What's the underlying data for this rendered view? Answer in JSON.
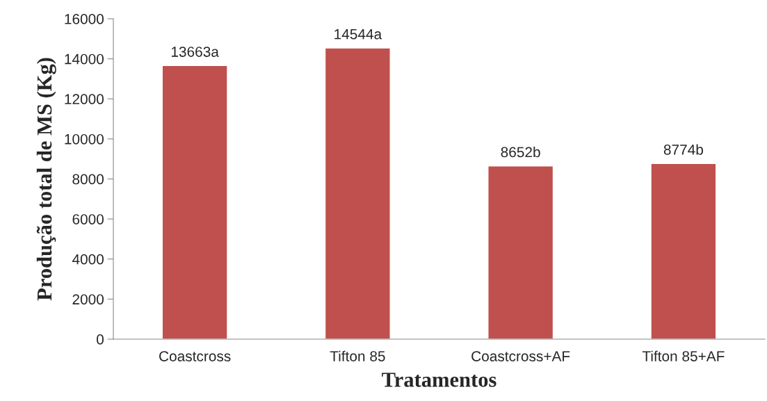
{
  "chart_data": {
    "type": "bar",
    "xlabel": "Tratamentos",
    "ylabel": "Produção total de MS (Kg)",
    "categories": [
      "Coastcross",
      "Tifton 85",
      "Coastcross+AF",
      "Tifton 85+AF"
    ],
    "values": [
      13663,
      14544,
      8652,
      8774
    ],
    "color": "#c0504d",
    "value_labels": [
      "13663a",
      "14544a",
      "8652b",
      "8774b"
    ],
    "ylim": [
      0,
      16000
    ],
    "yticks": [
      0,
      2000,
      4000,
      6000,
      8000,
      10000,
      12000,
      14000,
      16000
    ],
    "grid": false,
    "legend": false
  }
}
